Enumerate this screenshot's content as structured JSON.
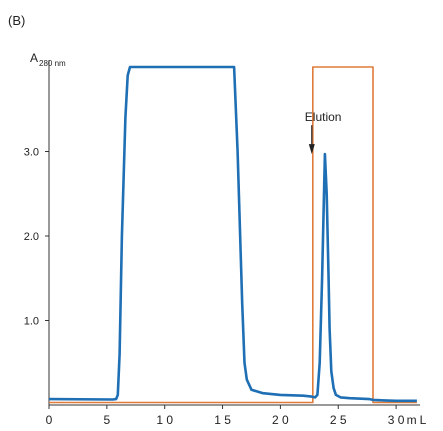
{
  "panel_label": "(B)",
  "chart_data": {
    "type": "line",
    "title": "",
    "ylabel_main": "A",
    "ylabel_sub": "280 nm",
    "xlabel": "mL",
    "xlim": [
      0,
      32.5
    ],
    "ylim": [
      0,
      4.0
    ],
    "x_ticks": [
      0,
      5,
      10,
      15,
      20,
      25,
      30
    ],
    "x_tick_labels": [
      "0",
      "5",
      "1 0",
      "1 5",
      "2 0",
      "2 5",
      "3 0"
    ],
    "y_ticks": [
      1.0,
      2.0,
      3.0
    ],
    "y_tick_labels": [
      "1.0",
      "2.0",
      "3.0"
    ],
    "grid": false,
    "series": [
      {
        "color": "#1f6fb5",
        "x": [
          0,
          5.5,
          5.8,
          5.95,
          6.1,
          6.3,
          6.6,
          6.8,
          7.0,
          16.0,
          16.3,
          16.7,
          16.9,
          17.1,
          17.5,
          18.5,
          20,
          22,
          22.7,
          23.0,
          23.2,
          23.4,
          23.6,
          23.75,
          23.85,
          24.0,
          24.15,
          24.25,
          24.4,
          24.6,
          24.8,
          25.2,
          26,
          27.7,
          28,
          29,
          30,
          31,
          31.8
        ],
        "y": [
          0.07,
          0.065,
          0.07,
          0.12,
          0.6,
          2.0,
          3.4,
          3.9,
          4.0,
          4.0,
          3.0,
          1.2,
          0.5,
          0.3,
          0.18,
          0.14,
          0.12,
          0.11,
          0.1,
          0.09,
          0.12,
          0.5,
          1.5,
          2.4,
          2.97,
          2.5,
          1.6,
          0.9,
          0.4,
          0.2,
          0.12,
          0.09,
          0.08,
          0.07,
          0.06,
          0.055,
          0.05,
          0.05,
          0.05
        ]
      },
      {
        "color": "#e07b39",
        "x": [
          0,
          22.8,
          22.8,
          28.0,
          28.0,
          31.8
        ],
        "y": [
          0.03,
          0.03,
          4.0,
          4.0,
          0.03,
          0.03
        ]
      }
    ],
    "annotations": [
      {
        "text": "Elution",
        "x": 22.8,
        "y": 3.3
      }
    ]
  }
}
